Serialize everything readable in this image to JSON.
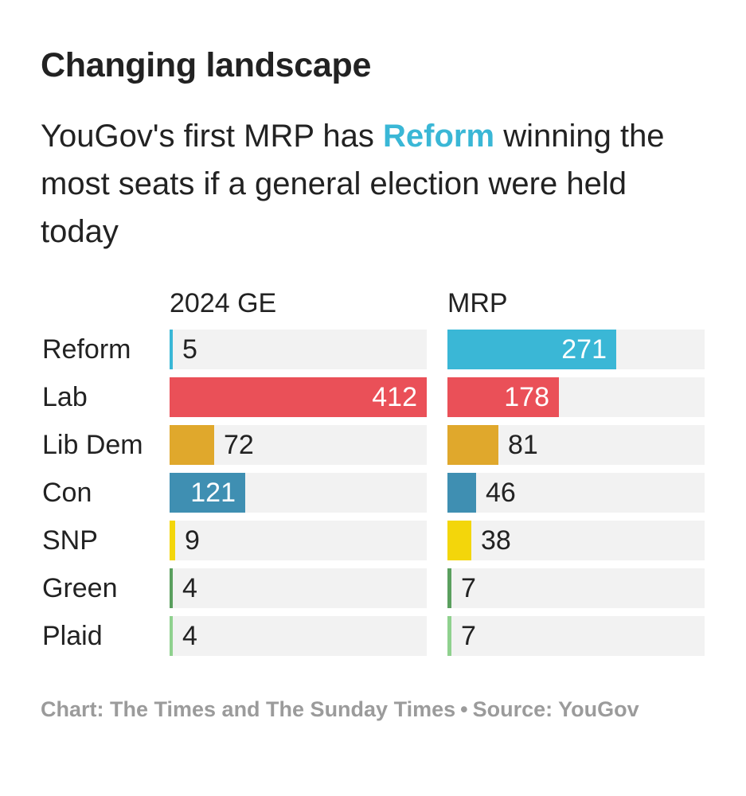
{
  "chart_data": {
    "type": "bar",
    "title": "Changing landscape",
    "subtitle": {
      "before": "YouGov's first MRP has ",
      "highlight": "Reform",
      "after": " winning the most seats if a general election were held today"
    },
    "categories": [
      "Reform",
      "Lab",
      "Lib Dem",
      "Con",
      "SNP",
      "Green",
      "Plaid"
    ],
    "series": [
      {
        "name": "2024 GE",
        "values": [
          5,
          412,
          72,
          121,
          9,
          4,
          4
        ]
      },
      {
        "name": "MRP",
        "values": [
          271,
          178,
          81,
          46,
          38,
          7,
          7
        ]
      }
    ],
    "colors": [
      "#3ab7d6",
      "#ea5058",
      "#e0a82c",
      "#3f8fb2",
      "#f3d60b",
      "#5a9f5e",
      "#8fd18e"
    ],
    "highlight_color": "#3ab7d6",
    "xlim": [
      0,
      412
    ],
    "xlabel": "",
    "ylabel": ""
  },
  "footer": {
    "credit": "Chart: The Times and The Sunday Times",
    "separator": "•",
    "source": "Source: YouGov"
  }
}
